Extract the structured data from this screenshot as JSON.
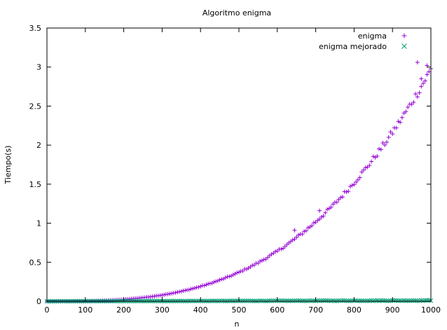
{
  "chart_data": {
    "type": "scatter",
    "title": "Algoritmo enigma",
    "xlabel": "n",
    "ylabel": "Tiempo(s)",
    "xlim": [
      0,
      1000
    ],
    "ylim": [
      0,
      3.5
    ],
    "x_ticks": [
      0,
      100,
      200,
      300,
      400,
      500,
      600,
      700,
      800,
      900,
      1000
    ],
    "y_ticks": [
      0,
      0.5,
      1,
      1.5,
      2,
      2.5,
      3,
      3.5
    ],
    "x_tick_labels": [
      "0",
      "100",
      "200",
      "300",
      "400",
      "500",
      "600",
      "700",
      "800",
      "900",
      "1000"
    ],
    "y_tick_labels": [
      "0",
      "0.5",
      "1",
      "1.5",
      "2",
      "2.5",
      "3",
      "3.5"
    ],
    "grid": false,
    "legend_position": "top-right",
    "series": [
      {
        "name": "enigma",
        "marker": "plus",
        "color": "#9400d3",
        "model": "cubic",
        "step": 5,
        "sample_points": [
          [
            100,
            0.003
          ],
          [
            200,
            0.024
          ],
          [
            300,
            0.081
          ],
          [
            400,
            0.19
          ],
          [
            500,
            0.37
          ],
          [
            600,
            0.64
          ],
          [
            700,
            1.02
          ],
          [
            800,
            1.52
          ],
          [
            900,
            2.16
          ],
          [
            1000,
            2.97
          ]
        ],
        "outliers": [
          [
            645,
            0.91
          ],
          [
            710,
            1.16
          ],
          [
            965,
            3.06
          ],
          [
            975,
            2.85
          ],
          [
            990,
            3.02
          ]
        ]
      },
      {
        "name": "enigma mejorado",
        "marker": "cross",
        "color": "#009e73",
        "model": "flat",
        "step": 5,
        "sample_points": [
          [
            0,
            0.0
          ],
          [
            500,
            0.003
          ],
          [
            1000,
            0.01
          ]
        ]
      }
    ]
  }
}
